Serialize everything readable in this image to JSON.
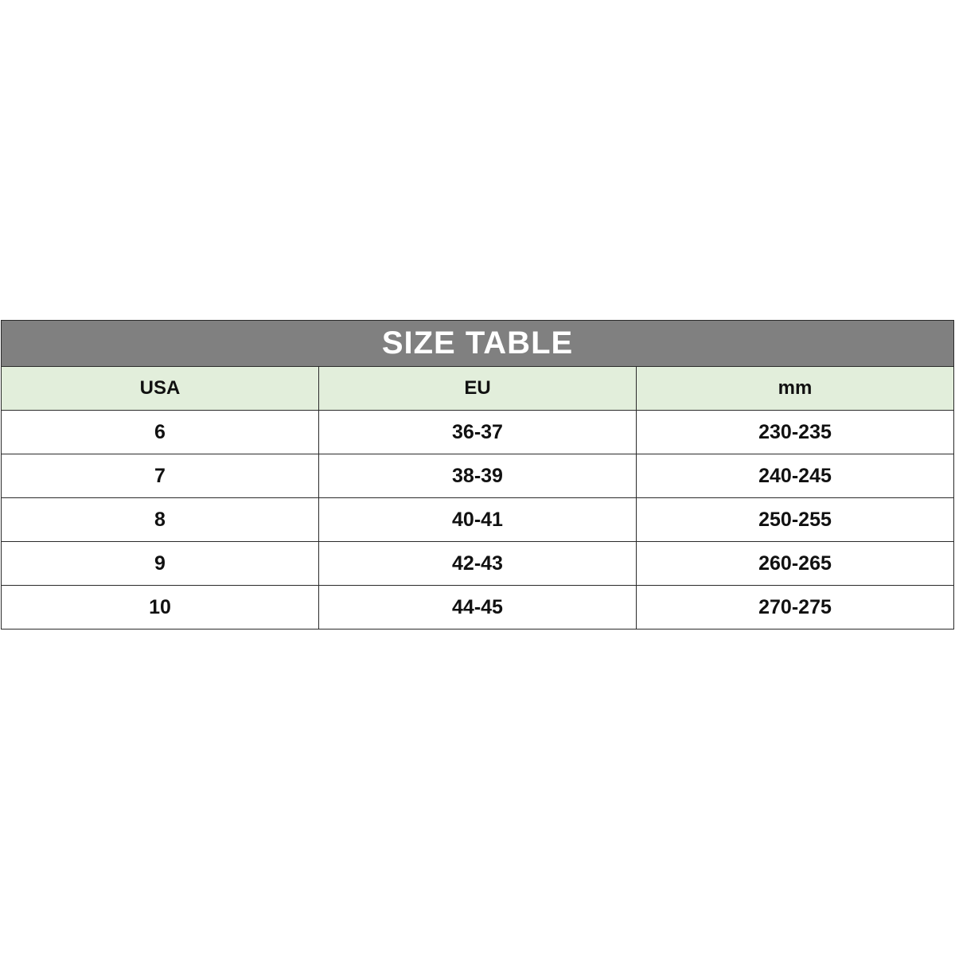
{
  "title": "SIZE TABLE",
  "colors": {
    "title_bg": "#808080",
    "header_bg": "#e2eedb"
  },
  "columns": [
    "USA",
    "EU",
    "mm"
  ],
  "rows": [
    [
      "6",
      "36-37",
      "230-235"
    ],
    [
      "7",
      "38-39",
      "240-245"
    ],
    [
      "8",
      "40-41",
      "250-255"
    ],
    [
      "9",
      "42-43",
      "260-265"
    ],
    [
      "10",
      "44-45",
      "270-275"
    ]
  ]
}
